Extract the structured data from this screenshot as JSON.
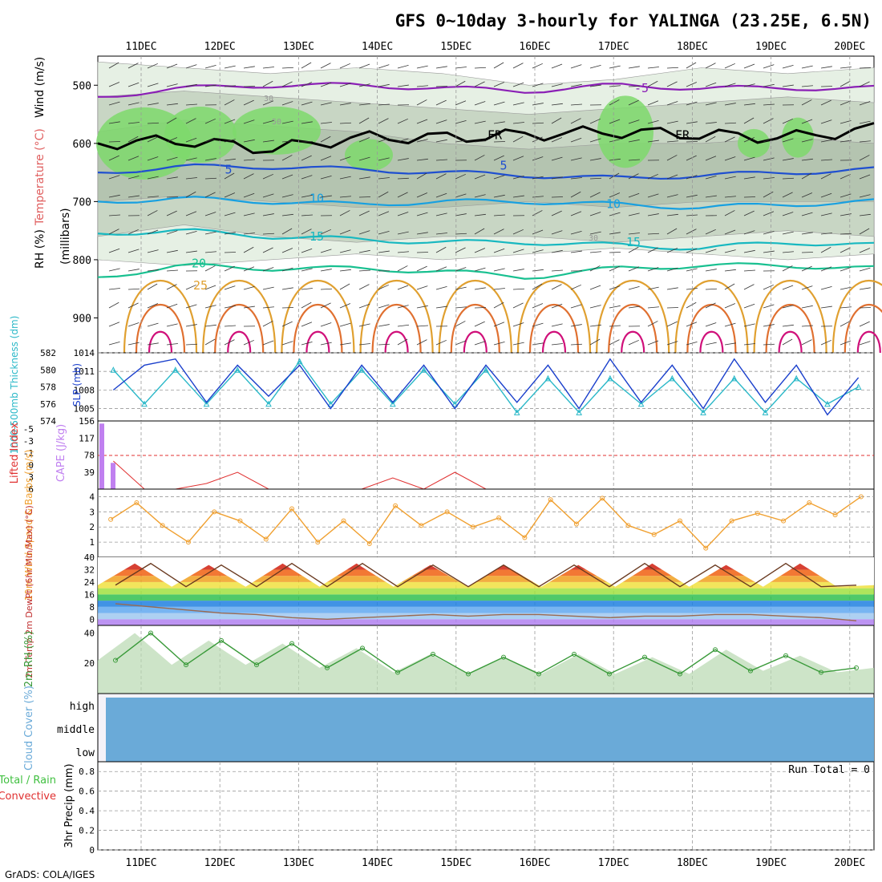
{
  "title": "GFS 0~10day 3-hourly for YALINGA (23.25E, 6.5N)",
  "footer": "GrADS: COLA/IGES",
  "run_total": "Run Total = 0",
  "colors": {
    "grid": "#888888",
    "rh_light": "#e6f0e4",
    "rh_mid": "#c8d6c4",
    "rh_dark": "#b4c4b0",
    "rh_green": "#7ed96c",
    "temp_neg5": "#8a1fb5",
    "temp_5": "#1f4fd0",
    "temp_10": "#18a0e0",
    "temp_15": "#18b8c0",
    "temp_20": "#18c090",
    "temp_25": "#e0a030",
    "temp_30": "#e07030",
    "temp_35": "#d0107a",
    "slp": "#1a3fcc",
    "thickness": "#2ab8c8",
    "lifted": "#e03030",
    "cape": "#c080f0",
    "wind10": "#f0a030",
    "rh2m": "#3a9a3a",
    "cloud": "#6aaad8",
    "cloud_bg": "#f4f2f8"
  },
  "chart_data": [
    {
      "type": "heatmap",
      "panel": "upper",
      "y_axis_label_parts": [
        "RH (%)",
        "Temperature (°C)",
        "Wind (m/s)"
      ],
      "y_axis_unit": "(millibars)",
      "x_labels": [
        "11DEC",
        "12DEC",
        "13DEC",
        "14DEC",
        "15DEC",
        "16DEC",
        "17DEC",
        "18DEC",
        "19DEC",
        "20DEC"
      ],
      "y_ticks": [
        500,
        600,
        700,
        800,
        900
      ],
      "ylim": [
        960,
        450
      ],
      "contour_labels": [
        {
          "text": "-5",
          "level": "temp_neg5"
        },
        {
          "text": "FR",
          "level": "freezing"
        },
        {
          "text": "FR",
          "level": "freezing"
        },
        {
          "text": "5",
          "level": "temp_5"
        },
        {
          "text": "5",
          "level": "temp_5"
        },
        {
          "text": "10",
          "level": "temp_10"
        },
        {
          "text": "10",
          "level": "temp_10"
        },
        {
          "text": "15",
          "level": "temp_15"
        },
        {
          "text": "15",
          "level": "temp_15"
        },
        {
          "text": "20",
          "level": "temp_20"
        },
        {
          "text": "25",
          "level": "temp_25"
        },
        {
          "text": "30",
          "level": "rh"
        },
        {
          "text": "50",
          "level": "rh"
        },
        {
          "text": "30",
          "level": "rh"
        }
      ],
      "isotherm_levels": [
        {
          "temp": "-5",
          "pressure": [
            520,
            505,
            500,
            500,
            505,
            510,
            500,
            505,
            505,
            505
          ]
        },
        {
          "temp": "0",
          "pressure": [
            600,
            595,
            610,
            590,
            590,
            585,
            580,
            585,
            590,
            575
          ]
        },
        {
          "temp": "5",
          "pressure": [
            650,
            640,
            640,
            645,
            650,
            655,
            660,
            655,
            650,
            645
          ]
        },
        {
          "temp": "10",
          "pressure": [
            700,
            695,
            700,
            705,
            700,
            700,
            705,
            710,
            705,
            700
          ]
        },
        {
          "temp": "15",
          "pressure": [
            755,
            750,
            760,
            765,
            770,
            770,
            775,
            780,
            770,
            775
          ]
        },
        {
          "temp": "20",
          "pressure": [
            830,
            810,
            815,
            815,
            820,
            830,
            815,
            810,
            810,
            815
          ]
        }
      ]
    },
    {
      "type": "line",
      "panel": "slp_thickness",
      "ylabel_left": "1000-500mb Thickness (dm)",
      "ylabel_right": "SLP (mb)",
      "y_left_ticks": [
        574,
        576,
        578,
        580,
        582
      ],
      "y_right_ticks": [
        1005,
        1008,
        1011,
        1014
      ],
      "series": [
        {
          "name": "SLP (mb)",
          "values": [
            1008,
            1012,
            1013,
            1006,
            1012,
            1007,
            1012,
            1005,
            1012,
            1006,
            1012,
            1005,
            1012,
            1006,
            1012,
            1005,
            1013,
            1006,
            1012,
            1005,
            1013,
            1006,
            1012,
            1004,
            1010
          ]
        },
        {
          "name": "1000-500mb Thickness (dm)",
          "values": [
            580,
            576,
            580,
            576,
            580,
            576,
            581,
            576,
            580,
            576,
            580,
            576,
            580,
            575,
            579,
            575,
            579,
            576,
            579,
            575,
            579,
            575,
            579,
            576,
            578
          ]
        }
      ]
    },
    {
      "type": "line",
      "panel": "stability",
      "ylabel_left": "Lifted Index",
      "ylabel_right": "CAPE (J/kg)",
      "y_left_ticks": [
        "-5",
        "-3",
        "-1",
        "0",
        "3",
        "6"
      ],
      "y_right_ticks": [
        156,
        117,
        78,
        39
      ],
      "series": [
        {
          "name": "Lifted Index",
          "values": [
            1,
            6,
            6,
            5,
            3,
            6,
            6,
            6,
            6,
            4,
            6,
            3,
            6,
            6,
            6,
            6,
            6,
            6,
            6,
            6,
            6,
            6,
            6,
            6,
            6
          ]
        },
        {
          "name": "CAPE (J/kg)",
          "values": [
            150,
            60,
            0,
            0,
            0,
            0,
            0,
            0,
            0,
            0,
            0,
            0,
            0,
            0,
            0,
            0,
            0,
            0,
            0,
            0,
            0,
            0,
            0,
            0,
            0
          ]
        }
      ]
    },
    {
      "type": "line",
      "panel": "wind10m",
      "ylabel": "10m Wind Speed & Barbs (m/s)",
      "y_ticks": [
        1,
        2,
        3,
        4
      ],
      "series": [
        {
          "name": "10m Wind Speed",
          "values": [
            2.5,
            3.6,
            2.1,
            1.0,
            3.0,
            2.4,
            1.2,
            3.2,
            1.0,
            2.4,
            0.9,
            3.4,
            2.1,
            3.0,
            2.0,
            2.6,
            1.3,
            3.8,
            2.2,
            3.9,
            2.1,
            1.5,
            2.4,
            0.6,
            2.4,
            2.9,
            2.4,
            3.6,
            2.8,
            4.0
          ]
        }
      ]
    },
    {
      "type": "area",
      "panel": "temp2m",
      "ylabel": "2m Temp 2m DewPt (6hr Min/Max) (°C)",
      "y_ticks": [
        0,
        8,
        16,
        24,
        32,
        40
      ],
      "series": [
        {
          "name": "2m Temp",
          "values": [
            22,
            36,
            21,
            35,
            21,
            36,
            21,
            36,
            21,
            35,
            21,
            35,
            21,
            35,
            21,
            36,
            21,
            35,
            21,
            36,
            21,
            22
          ]
        },
        {
          "name": "2m DewPt",
          "values": [
            10,
            8,
            6,
            4,
            3,
            1,
            0,
            1,
            2,
            3,
            2,
            3,
            3,
            2,
            1,
            2,
            2,
            3,
            3,
            2,
            1,
            -1
          ]
        }
      ]
    },
    {
      "type": "area",
      "panel": "rh2m",
      "ylabel": "2m RH (%)",
      "y_ticks": [
        20,
        40
      ],
      "series": [
        {
          "name": "2m RH",
          "values": [
            22,
            40,
            19,
            35,
            19,
            33,
            17,
            30,
            14,
            26,
            13,
            24,
            13,
            26,
            13,
            24,
            13,
            29,
            15,
            25,
            14,
            17
          ]
        }
      ]
    },
    {
      "type": "bar",
      "panel": "cloud",
      "ylabel": "Cloud Cover (%)",
      "categories": [
        "high",
        "middle",
        "low"
      ]
    },
    {
      "type": "bar",
      "panel": "precip",
      "ylabel_parts": [
        "Total / Rain",
        "Convective"
      ],
      "ylabel_main": "3hr Precip (mm)",
      "y_ticks": [
        0,
        0.2,
        0.4,
        0.6,
        0.8
      ],
      "values": []
    }
  ]
}
